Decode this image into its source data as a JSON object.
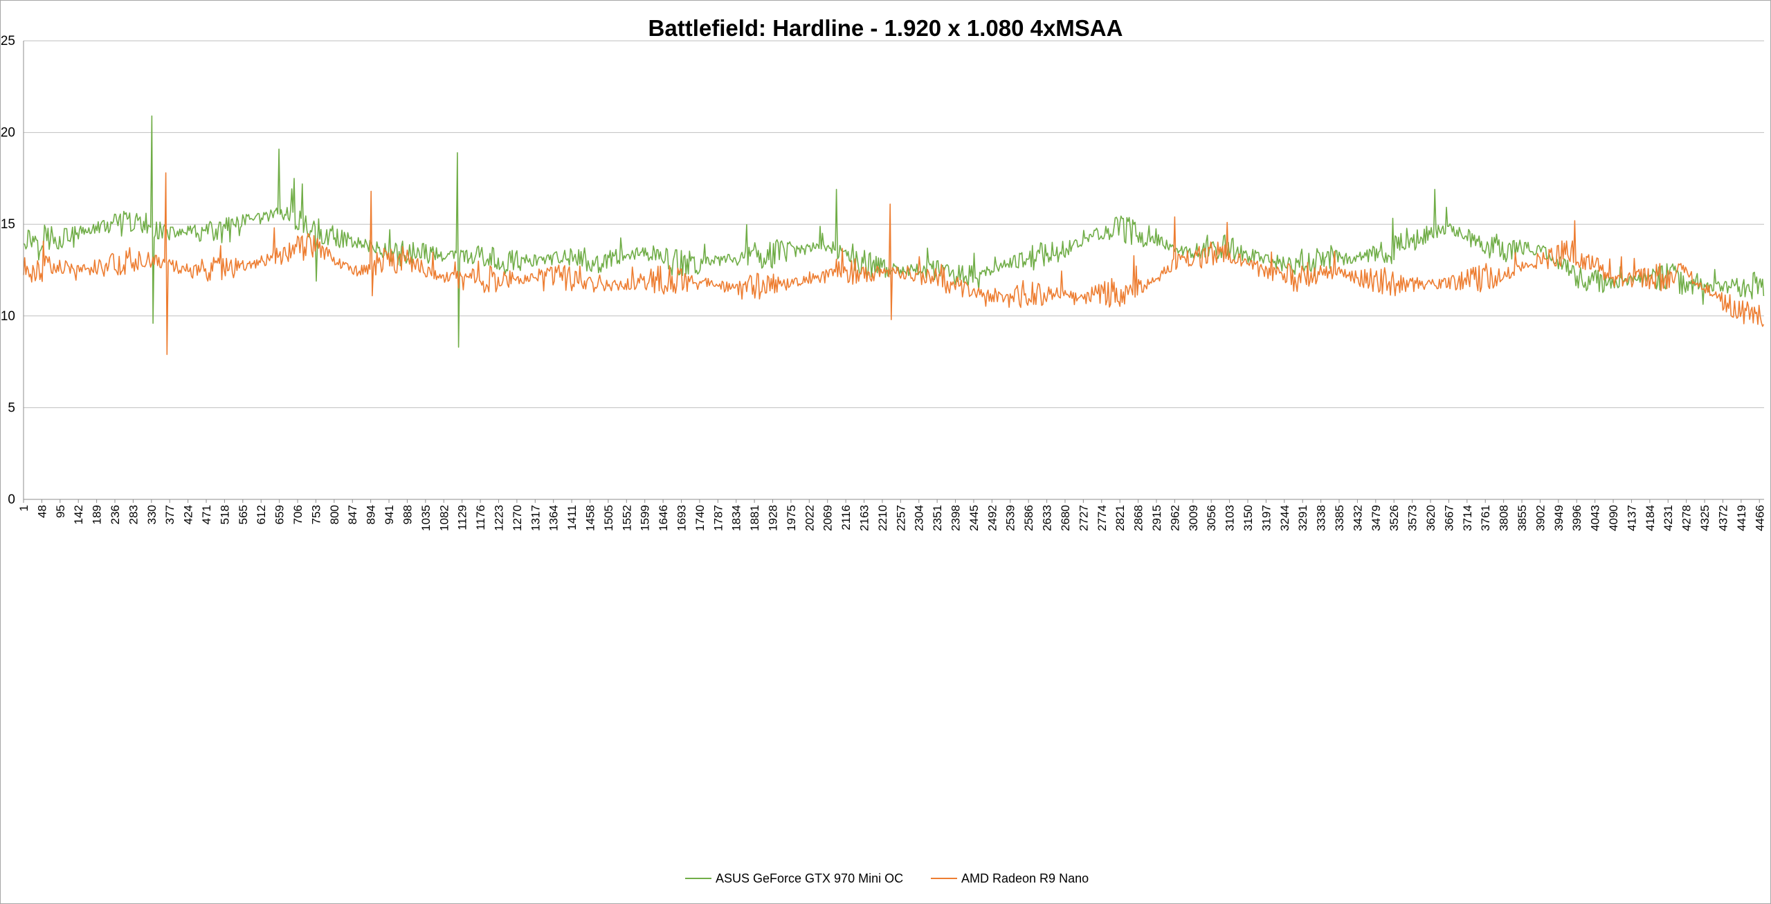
{
  "chart_data": {
    "type": "line",
    "title": "Battlefield: Hardline - 1.920 x 1.080 4xMSAA",
    "xlabel": "",
    "ylabel": "",
    "ylim": [
      0,
      25
    ],
    "yticks": [
      "0",
      "5",
      "10",
      "15",
      "20",
      "25"
    ],
    "x_range": [
      1,
      4478
    ],
    "x_ticks": [
      1,
      48,
      95,
      142,
      189,
      236,
      283,
      330,
      377,
      424,
      471,
      518,
      565,
      612,
      659,
      706,
      753,
      800,
      847,
      894,
      941,
      988,
      1035,
      1082,
      1129,
      1176,
      1223,
      1270,
      1317,
      1364,
      1411,
      1458,
      1505,
      1552,
      1599,
      1646,
      1693,
      1740,
      1787,
      1834,
      1881,
      1928,
      1975,
      2022,
      2069,
      2116,
      2163,
      2210,
      2257,
      2304,
      2351,
      2398,
      2445,
      2492,
      2539,
      2586,
      2633,
      2680,
      2727,
      2774,
      2821,
      2868,
      2915,
      2962,
      3009,
      3056,
      3103,
      3150,
      3197,
      3244,
      3291,
      3338,
      3385,
      3432,
      3479,
      3526,
      3573,
      3620,
      3667,
      3714,
      3761,
      3808,
      3855,
      3902,
      3949,
      3996,
      4043,
      4090,
      4137,
      4184,
      4231,
      4278,
      4325,
      4372,
      4419,
      4466
    ],
    "grid": true,
    "legend": "bottom",
    "series": [
      {
        "name": "ASUS GeForce GTX 970 Mini OC",
        "color": "#70ad47",
        "x": [
          1,
          48,
          95,
          142,
          189,
          236,
          283,
          330,
          377,
          424,
          471,
          518,
          565,
          612,
          659,
          706,
          753,
          800,
          847,
          894,
          941,
          988,
          1035,
          1082,
          1129,
          1176,
          1223,
          1270,
          1317,
          1364,
          1411,
          1458,
          1505,
          1552,
          1599,
          1646,
          1693,
          1740,
          1787,
          1834,
          1881,
          1928,
          1975,
          2022,
          2069,
          2116,
          2163,
          2210,
          2257,
          2304,
          2351,
          2398,
          2445,
          2492,
          2539,
          2586,
          2633,
          2680,
          2727,
          2774,
          2821,
          2868,
          2915,
          2962,
          3009,
          3056,
          3103,
          3150,
          3197,
          3244,
          3291,
          3338,
          3385,
          3432,
          3479,
          3526,
          3573,
          3620,
          3667,
          3714,
          3761,
          3808,
          3855,
          3902,
          3949,
          3996,
          4043,
          4090,
          4137,
          4184,
          4231,
          4278,
          4325,
          4372,
          4419,
          4466,
          4478
        ],
        "values": [
          14.2,
          14.3,
          14.3,
          14.5,
          14.8,
          15.0,
          15.0,
          14.9,
          14.5,
          14.6,
          14.5,
          14.6,
          14.9,
          15.3,
          15.7,
          15.2,
          14.6,
          14.3,
          14.1,
          13.8,
          13.6,
          13.4,
          13.4,
          13.3,
          13.3,
          13.2,
          13.1,
          13.0,
          13.0,
          13.1,
          13.1,
          13.0,
          13.1,
          13.3,
          13.5,
          13.1,
          12.8,
          12.9,
          13.0,
          13.1,
          13.3,
          13.4,
          13.5,
          13.7,
          13.8,
          13.4,
          12.9,
          12.6,
          12.5,
          12.5,
          12.4,
          12.2,
          12.3,
          12.4,
          12.9,
          13.2,
          13.4,
          13.6,
          14.1,
          14.6,
          14.8,
          14.5,
          14.3,
          13.5,
          13.6,
          13.8,
          13.6,
          13.3,
          13.1,
          12.8,
          12.9,
          13.0,
          13.1,
          13.2,
          13.4,
          13.6,
          14.0,
          14.5,
          14.8,
          14.4,
          13.9,
          13.6,
          13.7,
          13.6,
          13.0,
          12.3,
          11.9,
          11.8,
          11.9,
          12.0,
          12.2,
          11.8,
          11.6,
          11.6,
          11.6,
          11.7,
          11.7
        ],
        "spikes": [
          [
            333,
            20.9
          ],
          [
            336,
            9.6
          ],
          [
            660,
            19.1
          ],
          [
            699,
            17.5
          ],
          [
            718,
            17.2
          ],
          [
            755,
            11.9
          ],
          [
            1118,
            18.9
          ],
          [
            1121,
            8.3
          ],
          [
            2094,
            16.9
          ],
          [
            3632,
            16.9
          ]
        ]
      },
      {
        "name": "AMD Radeon R9 Nano",
        "color": "#ed7d31",
        "x": [
          1,
          48,
          95,
          142,
          189,
          236,
          283,
          330,
          377,
          424,
          471,
          518,
          565,
          612,
          659,
          706,
          753,
          800,
          847,
          894,
          941,
          988,
          1035,
          1082,
          1129,
          1176,
          1223,
          1270,
          1317,
          1364,
          1411,
          1458,
          1505,
          1552,
          1599,
          1646,
          1693,
          1740,
          1787,
          1834,
          1881,
          1928,
          1975,
          2022,
          2069,
          2116,
          2163,
          2210,
          2257,
          2304,
          2351,
          2398,
          2445,
          2492,
          2539,
          2586,
          2633,
          2680,
          2727,
          2774,
          2821,
          2868,
          2915,
          2962,
          3009,
          3056,
          3103,
          3150,
          3197,
          3244,
          3291,
          3338,
          3385,
          3432,
          3479,
          3526,
          3573,
          3620,
          3667,
          3714,
          3761,
          3808,
          3855,
          3902,
          3949,
          3996,
          4043,
          4090,
          4137,
          4184,
          4231,
          4278,
          4325,
          4372,
          4419,
          4466,
          4478
        ],
        "values": [
          12.5,
          12.6,
          12.7,
          12.5,
          12.7,
          12.9,
          13.0,
          13.1,
          12.8,
          12.5,
          12.4,
          12.5,
          12.7,
          13.0,
          13.3,
          13.6,
          14.0,
          13.2,
          12.4,
          12.8,
          13.2,
          13.0,
          12.5,
          12.1,
          12.0,
          12.1,
          12.0,
          12.0,
          12.2,
          12.2,
          12.1,
          11.9,
          11.7,
          11.7,
          11.8,
          12.0,
          11.9,
          11.8,
          11.8,
          11.6,
          11.6,
          11.7,
          11.8,
          12.1,
          12.4,
          12.5,
          12.4,
          12.3,
          12.4,
          12.4,
          12.2,
          11.6,
          11.3,
          11.1,
          11.1,
          11.2,
          11.2,
          11.1,
          11.0,
          11.2,
          11.3,
          11.6,
          12.0,
          12.9,
          13.2,
          13.4,
          13.3,
          12.9,
          12.3,
          12.1,
          12.1,
          12.3,
          12.4,
          12.1,
          11.9,
          11.8,
          11.8,
          11.7,
          11.9,
          12.0,
          12.1,
          12.2,
          12.7,
          13.0,
          13.4,
          13.3,
          12.9,
          11.9,
          12.0,
          12.1,
          12.2,
          12.4,
          11.5,
          10.8,
          10.3,
          10.1,
          10.0
        ],
        "spikes": [
          [
            368,
            17.8
          ],
          [
            371,
            7.9
          ],
          [
            896,
            16.8
          ],
          [
            898,
            11.1
          ],
          [
            2231,
            16.1
          ],
          [
            2234,
            9.8
          ],
          [
            2962,
            15.4
          ],
          [
            3098,
            15.1
          ]
        ]
      }
    ]
  }
}
